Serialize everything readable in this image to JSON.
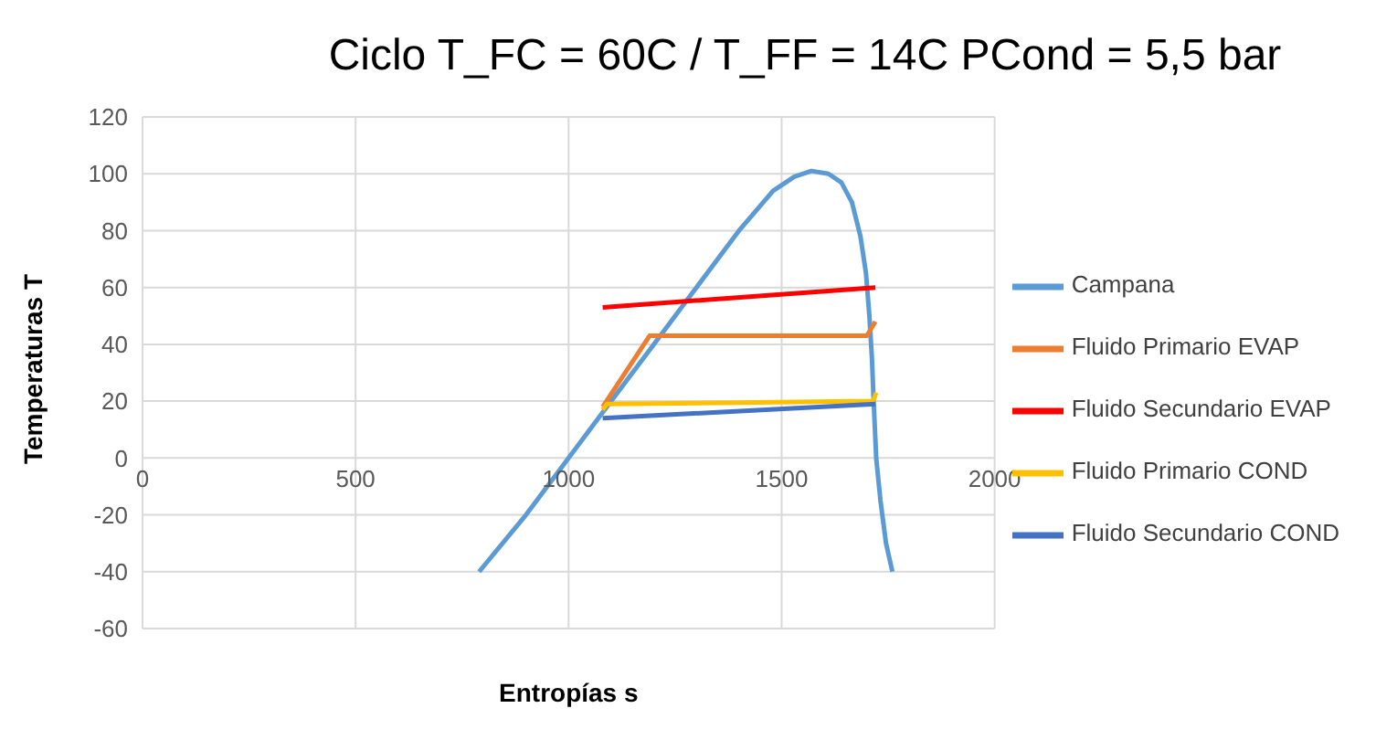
{
  "chart_data": {
    "type": "line",
    "title": "Ciclo T_FC = 60C / T_FF = 14C PCond = 5,5 bar",
    "xlabel": "Entropías s",
    "ylabel": "Temperaturas T",
    "xlim": [
      0,
      2000
    ],
    "xticks": [
      0,
      500,
      1000,
      1500,
      2000
    ],
    "ylim": [
      -60,
      120
    ],
    "yticks": [
      -60,
      -40,
      -20,
      0,
      20,
      40,
      60,
      80,
      100,
      120
    ],
    "grid": true,
    "legend": "right",
    "marker": "none",
    "line_style": "solid",
    "series": [
      {
        "name": "Campana",
        "color": "#5b9bd5",
        "x": [
          790,
          900,
          1000,
          1100,
          1200,
          1300,
          1400,
          1480,
          1530,
          1570,
          1610,
          1640,
          1665,
          1685,
          1698,
          1706,
          1712,
          1716,
          1722,
          1732,
          1745,
          1760
        ],
        "values": [
          -40,
          -20,
          0,
          20,
          40,
          60,
          80,
          94,
          99,
          101,
          100,
          97,
          90,
          78,
          65,
          50,
          35,
          20,
          0,
          -15,
          -30,
          -40
        ]
      },
      {
        "name": "Fluido Primario EVAP",
        "color": "#ed7d31",
        "x": [
          1080,
          1190,
          1700,
          1720
        ],
        "values": [
          18,
          43,
          43,
          48
        ]
      },
      {
        "name": "Fluido Secundario EVAP",
        "color": "#ff0000",
        "x": [
          1080,
          1720
        ],
        "values": [
          53,
          60
        ]
      },
      {
        "name": "Fluido Primario COND",
        "color": "#ffc000",
        "x": [
          1080,
          1090,
          1715,
          1722
        ],
        "values": [
          17,
          19,
          20,
          23
        ]
      },
      {
        "name": "Fluido Secundario COND",
        "color": "#4472c4",
        "x": [
          1080,
          1720
        ],
        "values": [
          14,
          19
        ]
      }
    ]
  }
}
